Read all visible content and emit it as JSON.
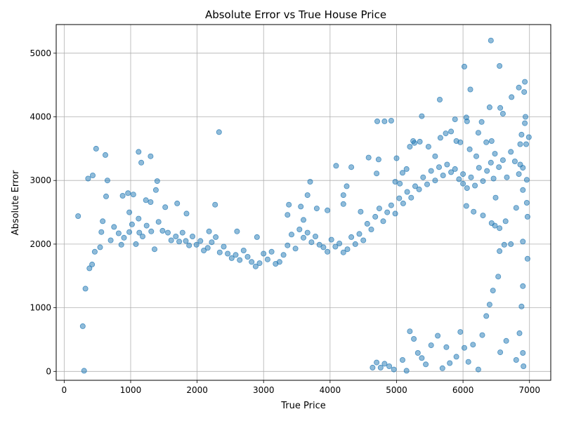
{
  "chart_data": {
    "type": "scatter",
    "title": "Absolute Error vs True House Price",
    "xlabel": "True Price",
    "ylabel": "Absolute Error",
    "xlim": [
      -120,
      7320
    ],
    "ylim": [
      -140,
      5450
    ],
    "xticks": [
      0,
      1000,
      2000,
      3000,
      4000,
      5000,
      6000,
      7000
    ],
    "yticks": [
      0,
      1000,
      2000,
      3000,
      4000,
      5000
    ],
    "grid": true,
    "point_color": "#1f77b4",
    "point_alpha": 0.5,
    "points": [
      [
        210,
        2440
      ],
      [
        360,
        3030
      ],
      [
        430,
        3080
      ],
      [
        480,
        3500
      ],
      [
        620,
        3400
      ],
      [
        650,
        3000
      ],
      [
        1120,
        3450
      ],
      [
        1160,
        3280
      ],
      [
        1300,
        3380
      ],
      [
        1400,
        2990
      ],
      [
        1380,
        2850
      ],
      [
        1700,
        2640
      ],
      [
        2330,
        3760
      ],
      [
        2270,
        2620
      ],
      [
        960,
        2800
      ],
      [
        1040,
        2780
      ],
      [
        880,
        2760
      ],
      [
        980,
        2500
      ],
      [
        1120,
        2400
      ],
      [
        1230,
        2690
      ],
      [
        1300,
        2660
      ],
      [
        1520,
        2580
      ],
      [
        1840,
        2480
      ],
      [
        2180,
        2200
      ],
      [
        2600,
        2200
      ],
      [
        2900,
        2110
      ],
      [
        3380,
        2620
      ],
      [
        3360,
        2460
      ],
      [
        3560,
        2590
      ],
      [
        3700,
        2980
      ],
      [
        3660,
        2770
      ],
      [
        3600,
        2380
      ],
      [
        3800,
        2560
      ],
      [
        3960,
        2530
      ],
      [
        4090,
        3230
      ],
      [
        4320,
        3210
      ],
      [
        4250,
        2910
      ],
      [
        4200,
        2770
      ],
      [
        4200,
        2630
      ],
      [
        4460,
        2510
      ],
      [
        4580,
        3360
      ],
      [
        4700,
        3110
      ],
      [
        4710,
        3930
      ],
      [
        4820,
        3930
      ],
      [
        4920,
        3940
      ],
      [
        4730,
        3330
      ],
      [
        5000,
        3350
      ],
      [
        5250,
        3620
      ],
      [
        5380,
        4010
      ],
      [
        5650,
        4270
      ],
      [
        5880,
        3960
      ],
      [
        6020,
        4790
      ],
      [
        6050,
        3990
      ],
      [
        6110,
        4430
      ],
      [
        6420,
        5200
      ],
      [
        6400,
        4150
      ],
      [
        6550,
        4800
      ],
      [
        6560,
        4140
      ],
      [
        6600,
        4050
      ],
      [
        6730,
        4310
      ],
      [
        6840,
        4460
      ],
      [
        6920,
        4390
      ],
      [
        6930,
        4550
      ],
      [
        6940,
        4000
      ],
      [
        6930,
        3900
      ],
      [
        6880,
        3720
      ],
      [
        6860,
        3570
      ],
      [
        6950,
        3570
      ],
      [
        6990,
        3680
      ],
      [
        6960,
        3010
      ],
      [
        6900,
        3200
      ],
      [
        6860,
        3250
      ],
      [
        6800,
        2570
      ],
      [
        6970,
        2430
      ],
      [
        6900,
        2040
      ],
      [
        6970,
        1770
      ],
      [
        6900,
        1340
      ],
      [
        6880,
        1020
      ],
      [
        6850,
        600
      ],
      [
        6900,
        290
      ],
      [
        6910,
        80
      ],
      [
        6800,
        180
      ],
      [
        6650,
        480
      ],
      [
        6560,
        300
      ],
      [
        6490,
        2730
      ],
      [
        6460,
        3030
      ],
      [
        6430,
        3620
      ],
      [
        6350,
        3600
      ],
      [
        6280,
        3920
      ],
      [
        6230,
        3750
      ],
      [
        6200,
        3380
      ],
      [
        6100,
        3490
      ],
      [
        6060,
        3930
      ],
      [
        5960,
        3600
      ],
      [
        5900,
        3620
      ],
      [
        5820,
        3770
      ],
      [
        5740,
        3740
      ],
      [
        5660,
        3670
      ],
      [
        5580,
        3380
      ],
      [
        5480,
        3530
      ],
      [
        5350,
        3610
      ],
      [
        5270,
        3590
      ],
      [
        5200,
        3530
      ],
      [
        5150,
        3180
      ],
      [
        5090,
        3120
      ],
      [
        4980,
        2980
      ],
      [
        5050,
        2950
      ],
      [
        6000,
        2950
      ],
      [
        6050,
        2600
      ],
      [
        6160,
        2510
      ],
      [
        6300,
        2450
      ],
      [
        6430,
        2330
      ],
      [
        6480,
        2290
      ],
      [
        6550,
        2250
      ],
      [
        6640,
        2360
      ],
      [
        6720,
        2000
      ],
      [
        6620,
        1990
      ],
      [
        6550,
        1890
      ],
      [
        6530,
        1490
      ],
      [
        6450,
        1270
      ],
      [
        6400,
        1050
      ],
      [
        6350,
        870
      ],
      [
        6290,
        570
      ],
      [
        6230,
        30
      ],
      [
        6150,
        420
      ],
      [
        6080,
        150
      ],
      [
        6020,
        370
      ],
      [
        5960,
        620
      ],
      [
        5900,
        230
      ],
      [
        5800,
        130
      ],
      [
        5750,
        380
      ],
      [
        5690,
        50
      ],
      [
        5620,
        560
      ],
      [
        5520,
        410
      ],
      [
        5440,
        110
      ],
      [
        5380,
        210
      ],
      [
        5320,
        290
      ],
      [
        5260,
        510
      ],
      [
        5200,
        630
      ],
      [
        5150,
        10
      ],
      [
        5090,
        180
      ],
      [
        4960,
        30
      ],
      [
        4890,
        80
      ],
      [
        4820,
        120
      ],
      [
        4760,
        60
      ],
      [
        4700,
        140
      ],
      [
        4640,
        60
      ],
      [
        300,
        10
      ],
      [
        280,
        710
      ],
      [
        320,
        1300
      ],
      [
        380,
        1620
      ],
      [
        420,
        1680
      ],
      [
        460,
        1880
      ],
      [
        540,
        1950
      ],
      [
        560,
        2190
      ],
      [
        580,
        2360
      ],
      [
        630,
        2750
      ],
      [
        700,
        2060
      ],
      [
        750,
        2270
      ],
      [
        820,
        2170
      ],
      [
        860,
        1990
      ],
      [
        900,
        2100
      ],
      [
        980,
        2190
      ],
      [
        1020,
        2310
      ],
      [
        1080,
        2000
      ],
      [
        1130,
        2180
      ],
      [
        1180,
        2120
      ],
      [
        1240,
        2290
      ],
      [
        1310,
        2200
      ],
      [
        1360,
        1920
      ],
      [
        1420,
        2350
      ],
      [
        1480,
        2210
      ],
      [
        1560,
        2180
      ],
      [
        1610,
        2060
      ],
      [
        1680,
        2120
      ],
      [
        1730,
        2040
      ],
      [
        1780,
        2180
      ],
      [
        1830,
        2050
      ],
      [
        1880,
        1980
      ],
      [
        1930,
        2120
      ],
      [
        1990,
        1990
      ],
      [
        2050,
        2050
      ],
      [
        2100,
        1900
      ],
      [
        2160,
        1940
      ],
      [
        2220,
        2030
      ],
      [
        2280,
        2110
      ],
      [
        2340,
        1870
      ],
      [
        2400,
        1960
      ],
      [
        2460,
        1850
      ],
      [
        2520,
        1780
      ],
      [
        2580,
        1830
      ],
      [
        2640,
        1750
      ],
      [
        2700,
        1900
      ],
      [
        2760,
        1800
      ],
      [
        2820,
        1720
      ],
      [
        2880,
        1650
      ],
      [
        2940,
        1700
      ],
      [
        3000,
        1850
      ],
      [
        3060,
        1760
      ],
      [
        3120,
        1880
      ],
      [
        3180,
        1690
      ],
      [
        3240,
        1720
      ],
      [
        3300,
        1830
      ],
      [
        3360,
        1980
      ],
      [
        3420,
        2150
      ],
      [
        3480,
        1930
      ],
      [
        3540,
        2230
      ],
      [
        3600,
        2100
      ],
      [
        3660,
        2180
      ],
      [
        3720,
        2030
      ],
      [
        3780,
        2120
      ],
      [
        3840,
        1990
      ],
      [
        3900,
        1950
      ],
      [
        3960,
        1880
      ],
      [
        4020,
        2070
      ],
      [
        4080,
        1960
      ],
      [
        4140,
        2010
      ],
      [
        4200,
        1870
      ],
      [
        4260,
        1920
      ],
      [
        4320,
        2110
      ],
      [
        4380,
        2000
      ],
      [
        4440,
        2160
      ],
      [
        4500,
        2060
      ],
      [
        4560,
        2320
      ],
      [
        4620,
        2230
      ],
      [
        4680,
        2430
      ],
      [
        4740,
        2560
      ],
      [
        4800,
        2360
      ],
      [
        4860,
        2500
      ],
      [
        4920,
        2610
      ],
      [
        4980,
        2480
      ],
      [
        5040,
        2720
      ],
      [
        5100,
        2640
      ],
      [
        5160,
        2820
      ],
      [
        5220,
        2730
      ],
      [
        5280,
        2910
      ],
      [
        5340,
        2860
      ],
      [
        5400,
        3050
      ],
      [
        5460,
        2940
      ],
      [
        5520,
        3150
      ],
      [
        5580,
        3000
      ],
      [
        5640,
        3210
      ],
      [
        5700,
        3080
      ],
      [
        5760,
        3250
      ],
      [
        5820,
        3130
      ],
      [
        5880,
        3180
      ],
      [
        5940,
        3020
      ],
      [
        6000,
        3100
      ],
      [
        6060,
        2880
      ],
      [
        6120,
        3050
      ],
      [
        6180,
        2920
      ],
      [
        6240,
        3200
      ],
      [
        6300,
        2990
      ],
      [
        6360,
        3150
      ],
      [
        6420,
        3280
      ],
      [
        6480,
        3420
      ],
      [
        6540,
        3210
      ],
      [
        6600,
        3320
      ],
      [
        6660,
        3050
      ],
      [
        6720,
        3450
      ],
      [
        6780,
        3300
      ],
      [
        6840,
        3100
      ],
      [
        6900,
        2850
      ],
      [
        6960,
        2650
      ]
    ]
  }
}
